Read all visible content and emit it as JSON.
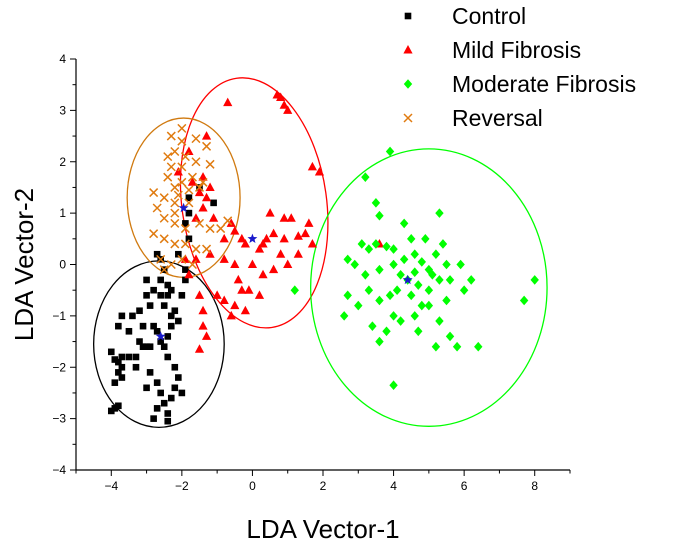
{
  "chart_data": {
    "type": "scatter",
    "title": "",
    "xlabel": "LDA Vector-1",
    "ylabel": "LDA Vector-2",
    "xlim": [
      -5,
      9
    ],
    "ylim": [
      -4,
      4
    ],
    "x_ticks": [
      -4,
      -2,
      0,
      2,
      4,
      6,
      8
    ],
    "y_ticks": [
      -4,
      -3,
      -2,
      -1,
      0,
      1,
      2,
      3,
      4
    ],
    "grid": false,
    "legend_position": "top-right",
    "series": [
      {
        "name": "Control",
        "marker": "square",
        "color": "#000000",
        "points": [
          [
            -3.9,
            -2.8
          ],
          [
            -4.0,
            -2.85
          ],
          [
            -3.8,
            -2.75
          ],
          [
            -3.8,
            -2.1
          ],
          [
            -3.7,
            -2.0
          ],
          [
            -3.8,
            -1.9
          ],
          [
            -3.7,
            -1.8
          ],
          [
            -3.9,
            -1.85
          ],
          [
            -3.7,
            -2.2
          ],
          [
            -3.9,
            -2.3
          ],
          [
            -4.0,
            -1.7
          ],
          [
            -3.8,
            -1.2
          ],
          [
            -3.5,
            -1.3
          ],
          [
            -3.4,
            -1.0
          ],
          [
            -3.7,
            -1.0
          ],
          [
            -3.2,
            -1.5
          ],
          [
            -3.1,
            -1.6
          ],
          [
            -3.0,
            -1.6
          ],
          [
            -3.1,
            -1.2
          ],
          [
            -3.2,
            -0.9
          ],
          [
            -3.0,
            -0.6
          ],
          [
            -3.0,
            -0.3
          ],
          [
            -2.8,
            -0.5
          ],
          [
            -2.9,
            -1.6
          ],
          [
            -2.8,
            -1.2
          ],
          [
            -2.6,
            -1.5
          ],
          [
            -2.7,
            -1.3
          ],
          [
            -2.9,
            -0.8
          ],
          [
            -2.6,
            -0.6
          ],
          [
            -2.5,
            -0.8
          ],
          [
            -2.4,
            -0.6
          ],
          [
            -2.4,
            -0.4
          ],
          [
            -2.6,
            -0.3
          ],
          [
            -2.5,
            -0.1
          ],
          [
            -2.6,
            0.1
          ],
          [
            -2.7,
            0.2
          ],
          [
            -2.3,
            -0.5
          ],
          [
            -2.2,
            -0.9
          ],
          [
            -2.1,
            -1.1
          ],
          [
            -2.3,
            -1.2
          ],
          [
            -2.5,
            -1.6
          ],
          [
            -2.4,
            -1.8
          ],
          [
            -2.2,
            -2.0
          ],
          [
            -2.1,
            -2.2
          ],
          [
            -2.2,
            -2.4
          ],
          [
            -2.0,
            -2.5
          ],
          [
            -2.3,
            -2.6
          ],
          [
            -2.5,
            -2.7
          ],
          [
            -2.4,
            -2.9
          ],
          [
            -2.4,
            -3.05
          ],
          [
            -2.6,
            -2.5
          ],
          [
            -2.7,
            -2.8
          ],
          [
            -2.8,
            -3.0
          ],
          [
            -2.7,
            -2.3
          ],
          [
            -2.9,
            -2.1
          ],
          [
            -3.0,
            -2.4
          ],
          [
            -3.3,
            -2.0
          ],
          [
            -3.3,
            -1.8
          ],
          [
            -3.5,
            -1.8
          ],
          [
            -2.4,
            -1.4
          ],
          [
            -2.3,
            -1.0
          ],
          [
            -2.0,
            -0.6
          ],
          [
            -1.9,
            -0.3
          ],
          [
            -1.9,
            -0.1
          ],
          [
            -2.1,
            0.2
          ],
          [
            -1.8,
            0.5
          ],
          [
            -1.9,
            0.8
          ],
          [
            -1.8,
            1.0
          ],
          [
            -1.8,
            1.3
          ],
          [
            -1.1,
            1.2
          ],
          [
            -1.5,
            1.5
          ]
        ]
      },
      {
        "name": "Mild Fibrosis",
        "marker": "triangle",
        "color": "#ff0000",
        "points": [
          [
            -0.7,
            3.15
          ],
          [
            0.7,
            3.3
          ],
          [
            0.8,
            3.25
          ],
          [
            0.9,
            3.1
          ],
          [
            1.0,
            3.0
          ],
          [
            1.7,
            1.9
          ],
          [
            1.9,
            1.8
          ],
          [
            -2.1,
            1.8
          ],
          [
            -1.7,
            1.6
          ],
          [
            -1.4,
            1.7
          ],
          [
            -1.2,
            1.5
          ],
          [
            -1.5,
            1.4
          ],
          [
            -1.3,
            1.3
          ],
          [
            -1.4,
            1.1
          ],
          [
            -1.6,
            0.9
          ],
          [
            -1.1,
            0.9
          ],
          [
            -0.6,
            0.8
          ],
          [
            -0.5,
            0.65
          ],
          [
            -0.8,
            0.5
          ],
          [
            -0.3,
            0.5
          ],
          [
            -0.2,
            0.4
          ],
          [
            0.2,
            0.3
          ],
          [
            0.3,
            0.4
          ],
          [
            0.4,
            0.5
          ],
          [
            0.6,
            0.6
          ],
          [
            0.5,
            1.0
          ],
          [
            0.9,
            0.9
          ],
          [
            1.1,
            0.9
          ],
          [
            0.9,
            0.5
          ],
          [
            1.3,
            0.55
          ],
          [
            1.5,
            0.6
          ],
          [
            1.6,
            0.8
          ],
          [
            1.7,
            0.4
          ],
          [
            1.3,
            0.2
          ],
          [
            0.8,
            0.2
          ],
          [
            1.0,
            0.0
          ],
          [
            0.6,
            -0.1
          ],
          [
            0.3,
            -0.2
          ],
          [
            0.0,
            0.0
          ],
          [
            -0.5,
            0.0
          ],
          [
            -0.8,
            0.1
          ],
          [
            -0.4,
            -0.3
          ],
          [
            -0.3,
            -0.5
          ],
          [
            -0.1,
            -0.5
          ],
          [
            0.2,
            -0.6
          ],
          [
            -0.5,
            -0.8
          ],
          [
            -0.8,
            -0.7
          ],
          [
            -0.6,
            -1.0
          ],
          [
            -0.2,
            -0.9
          ],
          [
            -1.0,
            -0.6
          ],
          [
            -1.5,
            -0.6
          ],
          [
            -1.4,
            -0.9
          ],
          [
            -1.4,
            -1.2
          ],
          [
            -1.3,
            -1.4
          ],
          [
            -1.5,
            -1.65
          ],
          [
            -1.8,
            -0.2
          ],
          [
            -1.9,
            0.1
          ],
          [
            -1.6,
            0.1
          ],
          [
            -1.2,
            0.2
          ],
          [
            3.6,
            0.4
          ],
          [
            -1.3,
            2.5
          ],
          [
            -1.8,
            2.2
          ]
        ]
      },
      {
        "name": "Moderate Fibrosis",
        "marker": "diamond",
        "color": "#00ff00",
        "points": [
          [
            3.9,
            2.2
          ],
          [
            3.2,
            1.7
          ],
          [
            3.5,
            1.2
          ],
          [
            3.6,
            0.95
          ],
          [
            5.3,
            1.0
          ],
          [
            3.1,
            0.4
          ],
          [
            3.3,
            0.3
          ],
          [
            3.5,
            0.4
          ],
          [
            3.8,
            0.35
          ],
          [
            4.0,
            0.3
          ],
          [
            4.5,
            0.5
          ],
          [
            4.9,
            0.5
          ],
          [
            5.4,
            0.4
          ],
          [
            2.7,
            0.1
          ],
          [
            2.9,
            0.0
          ],
          [
            3.2,
            -0.2
          ],
          [
            3.6,
            -0.1
          ],
          [
            4.0,
            0.0
          ],
          [
            4.3,
            0.1
          ],
          [
            4.6,
            0.2
          ],
          [
            4.8,
            0.05
          ],
          [
            5.0,
            -0.1
          ],
          [
            5.2,
            0.2
          ],
          [
            5.5,
            0.0
          ],
          [
            5.9,
            0.0
          ],
          [
            6.2,
            -0.3
          ],
          [
            6.0,
            -0.5
          ],
          [
            5.6,
            -0.3
          ],
          [
            5.3,
            -0.3
          ],
          [
            5.0,
            -0.5
          ],
          [
            4.7,
            -0.4
          ],
          [
            4.4,
            -0.3
          ],
          [
            4.2,
            -0.2
          ],
          [
            3.9,
            -0.6
          ],
          [
            3.6,
            -0.7
          ],
          [
            3.3,
            -0.5
          ],
          [
            2.7,
            -0.6
          ],
          [
            2.6,
            -1.0
          ],
          [
            3.0,
            -0.8
          ],
          [
            3.4,
            -1.2
          ],
          [
            3.8,
            -1.3
          ],
          [
            4.2,
            -1.1
          ],
          [
            4.6,
            -1.0
          ],
          [
            5.0,
            -0.8
          ],
          [
            5.3,
            -1.1
          ],
          [
            5.6,
            -1.4
          ],
          [
            5.8,
            -1.6
          ],
          [
            5.2,
            -1.6
          ],
          [
            4.7,
            -1.3
          ],
          [
            4.0,
            -1.0
          ],
          [
            3.6,
            -1.5
          ],
          [
            4.0,
            -2.35
          ],
          [
            6.4,
            -1.6
          ],
          [
            7.7,
            -0.7
          ],
          [
            8.0,
            -0.3
          ],
          [
            4.3,
            0.8
          ],
          [
            4.5,
            -0.6
          ],
          [
            5.1,
            -0.2
          ],
          [
            4.8,
            -0.8
          ],
          [
            4.1,
            -0.5
          ],
          [
            5.5,
            -0.7
          ],
          [
            4.6,
            -0.15
          ],
          [
            1.2,
            -0.5
          ]
        ]
      },
      {
        "name": "Reversal",
        "marker": "x",
        "color": "#e07b10",
        "points": [
          [
            -2.3,
            2.5
          ],
          [
            -2.0,
            2.4
          ],
          [
            -1.6,
            2.45
          ],
          [
            -1.3,
            2.3
          ],
          [
            -2.2,
            2.2
          ],
          [
            -1.9,
            2.1
          ],
          [
            -2.4,
            2.1
          ],
          [
            -2.3,
            1.9
          ],
          [
            -2.0,
            1.9
          ],
          [
            -1.6,
            2.0
          ],
          [
            -1.2,
            1.95
          ],
          [
            -2.4,
            1.7
          ],
          [
            -2.2,
            1.5
          ],
          [
            -2.0,
            1.6
          ],
          [
            -1.5,
            1.5
          ],
          [
            -2.8,
            1.4
          ],
          [
            -2.5,
            1.3
          ],
          [
            -2.2,
            1.2
          ],
          [
            -2.7,
            1.1
          ],
          [
            -2.5,
            0.9
          ],
          [
            -2.2,
            0.8
          ],
          [
            -1.9,
            0.7
          ],
          [
            -1.5,
            0.8
          ],
          [
            -1.2,
            0.7
          ],
          [
            -0.9,
            0.7
          ],
          [
            -0.7,
            0.85
          ],
          [
            -2.8,
            0.6
          ],
          [
            -2.5,
            0.5
          ],
          [
            -2.2,
            0.4
          ],
          [
            -1.9,
            0.4
          ],
          [
            -1.6,
            0.3
          ],
          [
            -1.3,
            0.3
          ],
          [
            -2.6,
            0.1
          ],
          [
            -2.3,
            0.0
          ],
          [
            -2.0,
            0.1
          ],
          [
            -1.7,
            0.0
          ],
          [
            -2.5,
            -0.1
          ],
          [
            -2.2,
            1.0
          ],
          [
            -1.8,
            1.2
          ],
          [
            -2.1,
            1.35
          ],
          [
            -1.7,
            1.7
          ],
          [
            -1.4,
            1.6
          ],
          [
            -2.0,
            2.65
          ],
          [
            -1.8,
            1.45
          ]
        ]
      }
    ],
    "ellipses": [
      {
        "series": "Control",
        "color": "#000000",
        "cx": -2.65,
        "cy": -1.55,
        "rx": 1.85,
        "ry": 1.62
      },
      {
        "series": "Mild Fibrosis",
        "color": "#ff0000",
        "cx": 0.05,
        "cy": 1.2,
        "rx": 2.05,
        "ry": 2.45,
        "angle": -8
      },
      {
        "series": "Moderate Fibrosis",
        "color": "#00ff00",
        "cx": 5.0,
        "cy": -0.45,
        "rx": 3.35,
        "ry": 2.7
      },
      {
        "series": "Reversal",
        "color": "#d07a10",
        "cx": -1.95,
        "cy": 1.3,
        "rx": 1.6,
        "ry": 1.55
      }
    ],
    "centroids": [
      {
        "series": "Control",
        "x": -2.6,
        "y": -1.4
      },
      {
        "series": "Mild Fibrosis",
        "x": 0.0,
        "y": 0.5
      },
      {
        "series": "Moderate Fibrosis",
        "x": 4.4,
        "y": -0.3
      },
      {
        "series": "Reversal",
        "x": -1.95,
        "y": 1.1
      }
    ],
    "centroid_marker": {
      "marker": "star",
      "color": "#1a1acc"
    }
  }
}
